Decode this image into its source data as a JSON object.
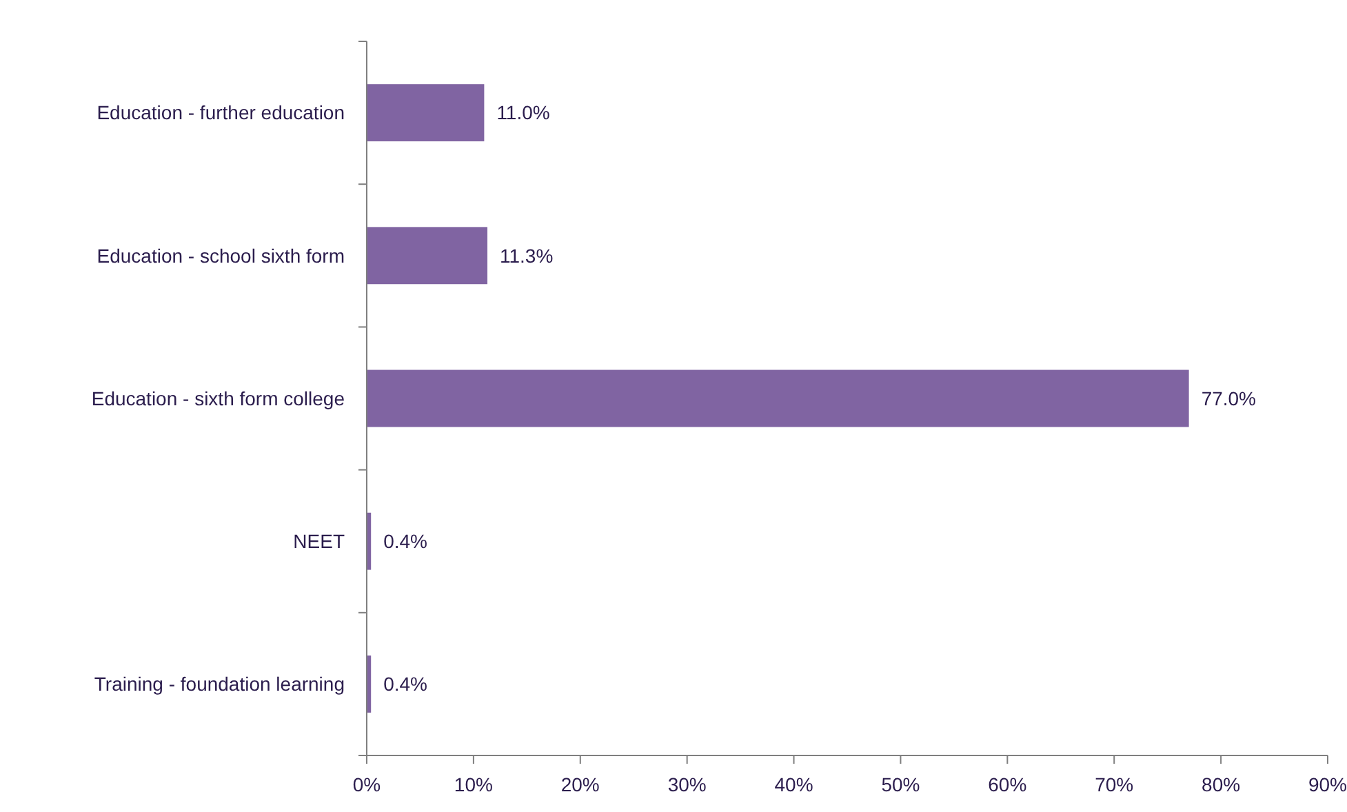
{
  "chart_data": {
    "type": "bar",
    "orientation": "horizontal",
    "categories": [
      "Education - further education",
      "Education - school sixth form",
      "Education - sixth form college",
      "NEET",
      "Training - foundation learning"
    ],
    "values": [
      11.0,
      11.3,
      77.0,
      0.4,
      0.4
    ],
    "value_labels": [
      "11.0%",
      "11.3%",
      "77.0%",
      "0.4%",
      "0.4%"
    ],
    "color": "#8064a2",
    "xlim": [
      0,
      90
    ],
    "xticks": [
      {
        "value": 0,
        "label": "0%"
      },
      {
        "value": 10,
        "label": "10%"
      },
      {
        "value": 20,
        "label": "20%"
      },
      {
        "value": 30,
        "label": "30%"
      },
      {
        "value": 40,
        "label": "40%"
      },
      {
        "value": 50,
        "label": "50%"
      },
      {
        "value": 60,
        "label": "60%"
      },
      {
        "value": 70,
        "label": "70%"
      },
      {
        "value": 80,
        "label": "80%"
      },
      {
        "value": 90,
        "label": "90%"
      }
    ],
    "grid": false
  }
}
